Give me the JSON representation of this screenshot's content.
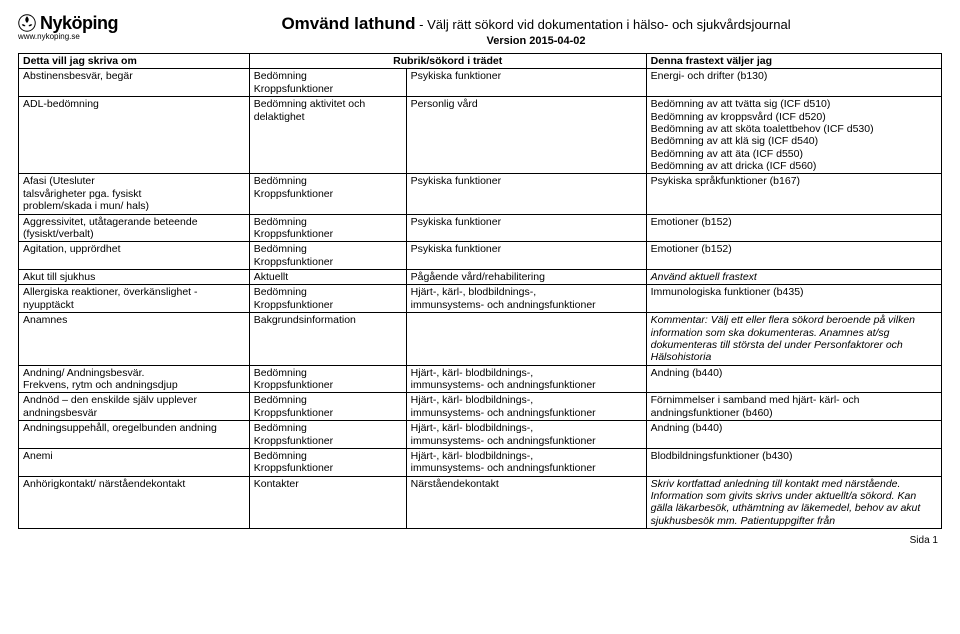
{
  "logo": {
    "text": "Nyköping",
    "url": "www.nykoping.se"
  },
  "title": {
    "bold": "Omvänd lathund",
    "rest": " - Välj rätt sökord vid dokumentation i hälso- och sjukvårdsjournal",
    "version": "Version 2015-04-02"
  },
  "columns": [
    "Detta vill jag skriva om",
    "Rubrik/sökord i trädet",
    "Denna frastext väljer jag"
  ],
  "rows": [
    {
      "c1": "Abstinensbesvär, begär",
      "c2": "Bedömning\nKroppsfunktioner",
      "c3": "Psykiska funktioner",
      "c4": "Energi- och drifter (b130)"
    },
    {
      "c1": "ADL-bedömning",
      "c2": "Bedömning aktivitet och delaktighet",
      "c3": "Personlig vård",
      "c4": "Bedömning av att tvätta sig (ICF d510)\nBedömning av kroppsvård (ICF d520)\nBedömning av att sköta toalettbehov (ICF d530)\nBedömning av att klä sig (ICF d540)\nBedömning av att äta (ICF d550)\nBedömning av att dricka (ICF d560)"
    },
    {
      "c1": "Afasi (Utesluter\ntalsvårigheter pga. fysiskt\nproblem/skada i mun/ hals)",
      "c2": "Bedömning\nKroppsfunktioner",
      "c3": "Psykiska funktioner",
      "c4": "Psykiska språkfunktioner (b167)"
    },
    {
      "c1": "Aggressivitet, utåtagerande beteende (fysiskt/verbalt)",
      "c2": "Bedömning\nKroppsfunktioner",
      "c3": "Psykiska funktioner",
      "c4": "Emotioner (b152)"
    },
    {
      "c1": "Agitation, upprördhet",
      "c2": "Bedömning\nKroppsfunktioner",
      "c3": "Psykiska funktioner",
      "c4": "Emotioner (b152)"
    },
    {
      "c1": "Akut till sjukhus",
      "c2": "Aktuellt",
      "c3": "Pågående vård/rehabilitering",
      "c4": "Använd aktuell frastext",
      "c4italic": true
    },
    {
      "c1": "Allergiska reaktioner, överkänslighet - nyupptäckt",
      "c2": "Bedömning\nKroppsfunktioner",
      "c3": "Hjärt-, kärl-, blodbildnings-,\nimmunsystems- och andningsfunktioner",
      "c4": "Immunologiska funktioner (b435)"
    },
    {
      "c1": "Anamnes",
      "c2": "Bakgrundsinformation",
      "c3": "",
      "c4": "Kommentar: Välj ett eller flera sökord beroende på vilken information som ska dokumenteras. Anamnes at/sg dokumenteras till största del under Personfaktorer och Hälsohistoria",
      "c4italic": true
    },
    {
      "c1": "Andning/ Andningsbesvär.\nFrekvens, rytm och andningsdjup",
      "c2": "Bedömning\nKroppsfunktioner",
      "c3": "Hjärt-, kärl- blodbildnings-,\nimmunsystems- och andningsfunktioner",
      "c4": "Andning (b440)"
    },
    {
      "c1": "Andnöd – den enskilde själv upplever andningsbesvär",
      "c2": "Bedömning\nKroppsfunktioner",
      "c3": "Hjärt-, kärl- blodbildnings-,\nimmunsystems- och andningsfunktioner",
      "c4": "Förnimmelser i samband med hjärt- kärl- och andningsfunktioner (b460)"
    },
    {
      "c1": "Andningsuppehåll, oregelbunden andning",
      "c2": "Bedömning\nKroppsfunktioner",
      "c3": "Hjärt-, kärl- blodbildnings-,\nimmunsystems- och andningsfunktioner",
      "c4": "Andning (b440)"
    },
    {
      "c1": "Anemi",
      "c2": "Bedömning\nKroppsfunktioner",
      "c3": "Hjärt-, kärl- blodbildnings-,\nimmunsystems- och andningsfunktioner",
      "c4": "Blodbildningsfunktioner (b430)"
    },
    {
      "c1": "Anhörigkontakt/ närståendekontakt",
      "c2": "Kontakter",
      "c3": "Närståendekontakt",
      "c4": "Skriv kortfattad anledning till kontakt med närstående. Information som givits skrivs under aktuellt/a sökord. Kan gälla läkarbesök, uthämtning av läkemedel, behov av akut sjukhusbesök mm. Patientuppgifter från",
      "c4italic": true
    }
  ],
  "footer": "Sida 1"
}
